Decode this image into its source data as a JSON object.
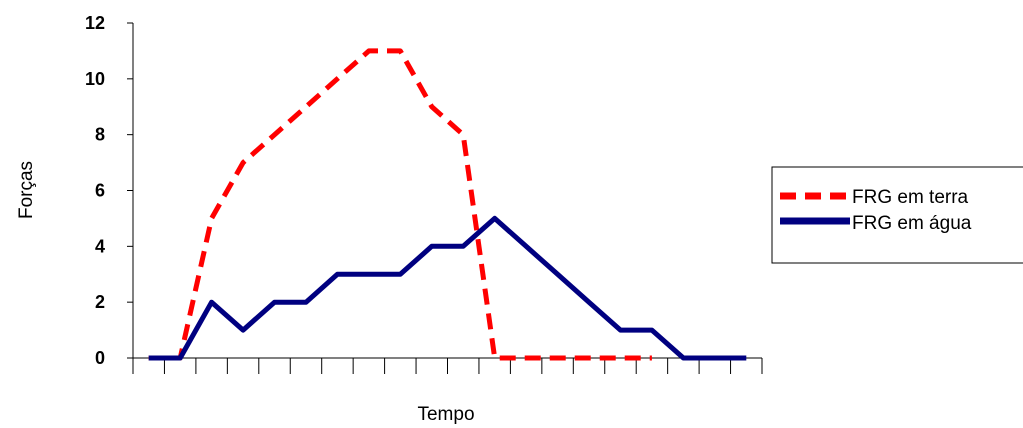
{
  "chart_data": {
    "type": "line",
    "xlabel": "Tempo",
    "ylabel": "Forças",
    "ylim": [
      0,
      12
    ],
    "yticks": [
      "0",
      "2",
      "4",
      "6",
      "8",
      "10",
      "12"
    ],
    "x": [
      1,
      2,
      3,
      4,
      5,
      6,
      7,
      8,
      9,
      10,
      11,
      12,
      13,
      14,
      15,
      16,
      17,
      18,
      19,
      20
    ],
    "series": [
      {
        "name": "FRG em terra",
        "color": "#ff0000",
        "dash": "dashed",
        "values": [
          0,
          0,
          5,
          7,
          8,
          9,
          10,
          11,
          11,
          9,
          8,
          0,
          0,
          0,
          0,
          0,
          0,
          null,
          null,
          null
        ]
      },
      {
        "name": "FRG em água",
        "color": "#000080",
        "dash": "solid",
        "values": [
          0,
          0,
          2,
          1,
          2,
          2,
          3,
          3,
          3,
          4,
          4,
          5,
          4,
          3,
          2,
          1,
          1,
          0,
          0,
          0
        ]
      }
    ],
    "grid": false,
    "legend": "right"
  }
}
